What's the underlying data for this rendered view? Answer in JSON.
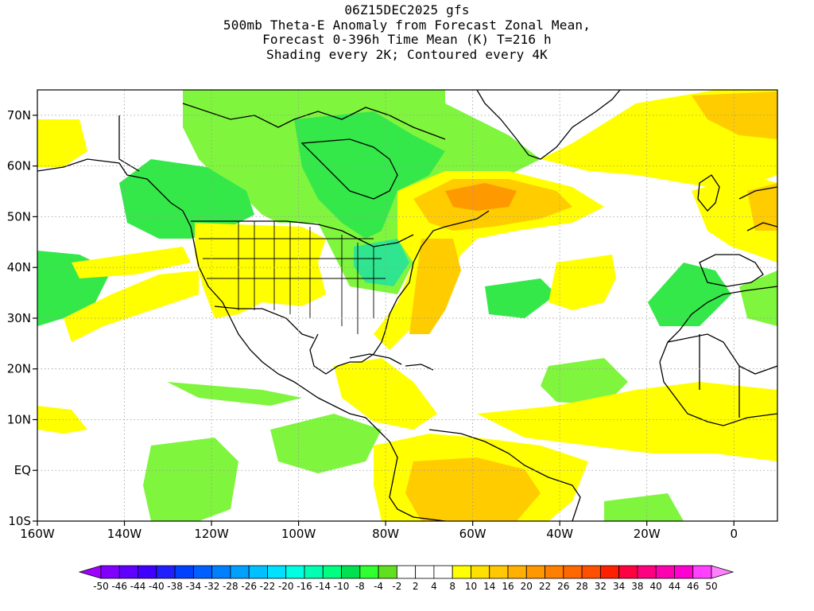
{
  "header": {
    "lines": [
      "06Z15DEC2025 gfs",
      "500mb Theta-E Anomaly from Forecast Zonal Mean,",
      "Forecast 0-396h Time Mean (K) T=216 h",
      "Shading every 2K; Contoured every 4K"
    ]
  },
  "map": {
    "lon_range": [
      -160,
      10
    ],
    "lat_range": [
      -10,
      75
    ],
    "lon_ticks": [
      {
        "lon": -160,
        "label": "160W"
      },
      {
        "lon": -140,
        "label": "140W"
      },
      {
        "lon": -120,
        "label": "120W"
      },
      {
        "lon": -100,
        "label": "100W"
      },
      {
        "lon": -80,
        "label": "80W"
      },
      {
        "lon": -60,
        "label": "60W"
      },
      {
        "lon": -40,
        "label": "40W"
      },
      {
        "lon": -20,
        "label": "20W"
      },
      {
        "lon": 0,
        "label": "0"
      }
    ],
    "lat_ticks": [
      {
        "lat": 70,
        "label": "70N"
      },
      {
        "lat": 60,
        "label": "60N"
      },
      {
        "lat": 50,
        "label": "50N"
      },
      {
        "lat": 40,
        "label": "40N"
      },
      {
        "lat": 30,
        "label": "30N"
      },
      {
        "lat": 20,
        "label": "20N"
      },
      {
        "lat": 10,
        "label": "10N"
      },
      {
        "lat": 0,
        "label": "EQ"
      },
      {
        "lat": -10,
        "label": "10S"
      }
    ],
    "grid": "dotted"
  },
  "colorbar": {
    "labels": [
      "-50",
      "-46",
      "-44",
      "-40",
      "-38",
      "-34",
      "-32",
      "-28",
      "-26",
      "-22",
      "-20",
      "-16",
      "-14",
      "-10",
      "-8",
      "-4",
      "-2",
      "2",
      "4",
      "8",
      "10",
      "14",
      "16",
      "20",
      "22",
      "26",
      "28",
      "32",
      "34",
      "38",
      "40",
      "44",
      "46",
      "50"
    ],
    "colors": [
      "#a000ff",
      "#8000ff",
      "#6000ff",
      "#4000ff",
      "#2020ff",
      "#0040ff",
      "#0060ff",
      "#0080ff",
      "#00a0ff",
      "#00c0ff",
      "#00e0ff",
      "#00ffe0",
      "#00ffb0",
      "#00ff80",
      "#00e050",
      "#30ff30",
      "#60e020",
      "#ffffff",
      "#ffffff",
      "#ffffff",
      "#ffff00",
      "#ffe000",
      "#ffc800",
      "#ffb000",
      "#ff9800",
      "#ff8000",
      "#ff6800",
      "#ff5000",
      "#ff2000",
      "#ff0040",
      "#ff0080",
      "#ff00b0",
      "#ff00d0",
      "#ff40ff",
      "#ff80ff"
    ]
  },
  "shading_colors": {
    "green_light": "#7ff53e",
    "green_mid": "#34e84a",
    "green_teal": "#2fe58f",
    "yellow": "#ffff00",
    "yellow_orange": "#ffcc00",
    "orange": "#ff9900"
  }
}
